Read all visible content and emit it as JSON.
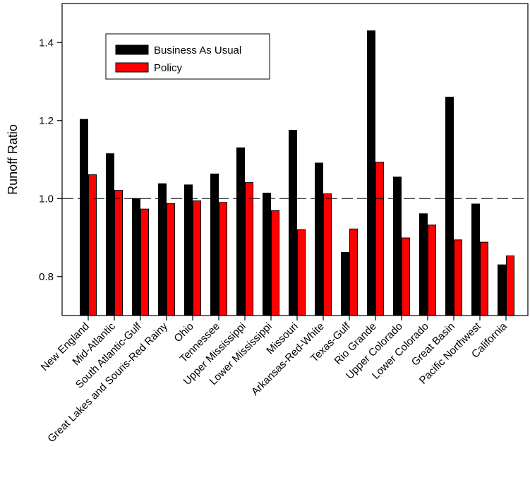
{
  "chart_data": {
    "type": "bar",
    "title": "",
    "xlabel": "",
    "ylabel": "Runoff Ratio",
    "ylim": [
      0.7,
      1.5
    ],
    "yticks": [
      0.8,
      1.0,
      1.2,
      1.4
    ],
    "ytick_labels": [
      "0.8",
      "1.0",
      "1.2",
      "1.4"
    ],
    "reference_line": {
      "y": 1.0,
      "style": "dashed"
    },
    "grid": false,
    "legend_position": "top-left",
    "categories": [
      "New England",
      "Mid-Atlantic",
      "South Atlantic-Gulf",
      "Great Lakes and Souris-Red Rainy",
      "Ohio",
      "Tennessee",
      "Upper Mississippi",
      "Lower Mississippi",
      "Missouri",
      "Arkansas-Red-White",
      "Texas-Gulf",
      "Rio Grande",
      "Upper Colorado",
      "Lower Colorado",
      "Great Basin",
      "Pacific Northwest",
      "California"
    ],
    "series": [
      {
        "name": "Business As Usual",
        "color": "#000000",
        "values": [
          1.203,
          1.115,
          1.0,
          1.038,
          1.035,
          1.063,
          1.13,
          1.014,
          1.175,
          1.091,
          0.862,
          1.43,
          1.055,
          0.961,
          1.26,
          0.986,
          0.83
        ]
      },
      {
        "name": "Policy",
        "color": "#ff0000",
        "values": [
          1.061,
          1.021,
          0.973,
          0.987,
          0.994,
          0.99,
          1.041,
          0.969,
          0.92,
          1.012,
          0.922,
          1.093,
          0.899,
          0.932,
          0.894,
          0.888,
          0.853
        ]
      }
    ]
  }
}
